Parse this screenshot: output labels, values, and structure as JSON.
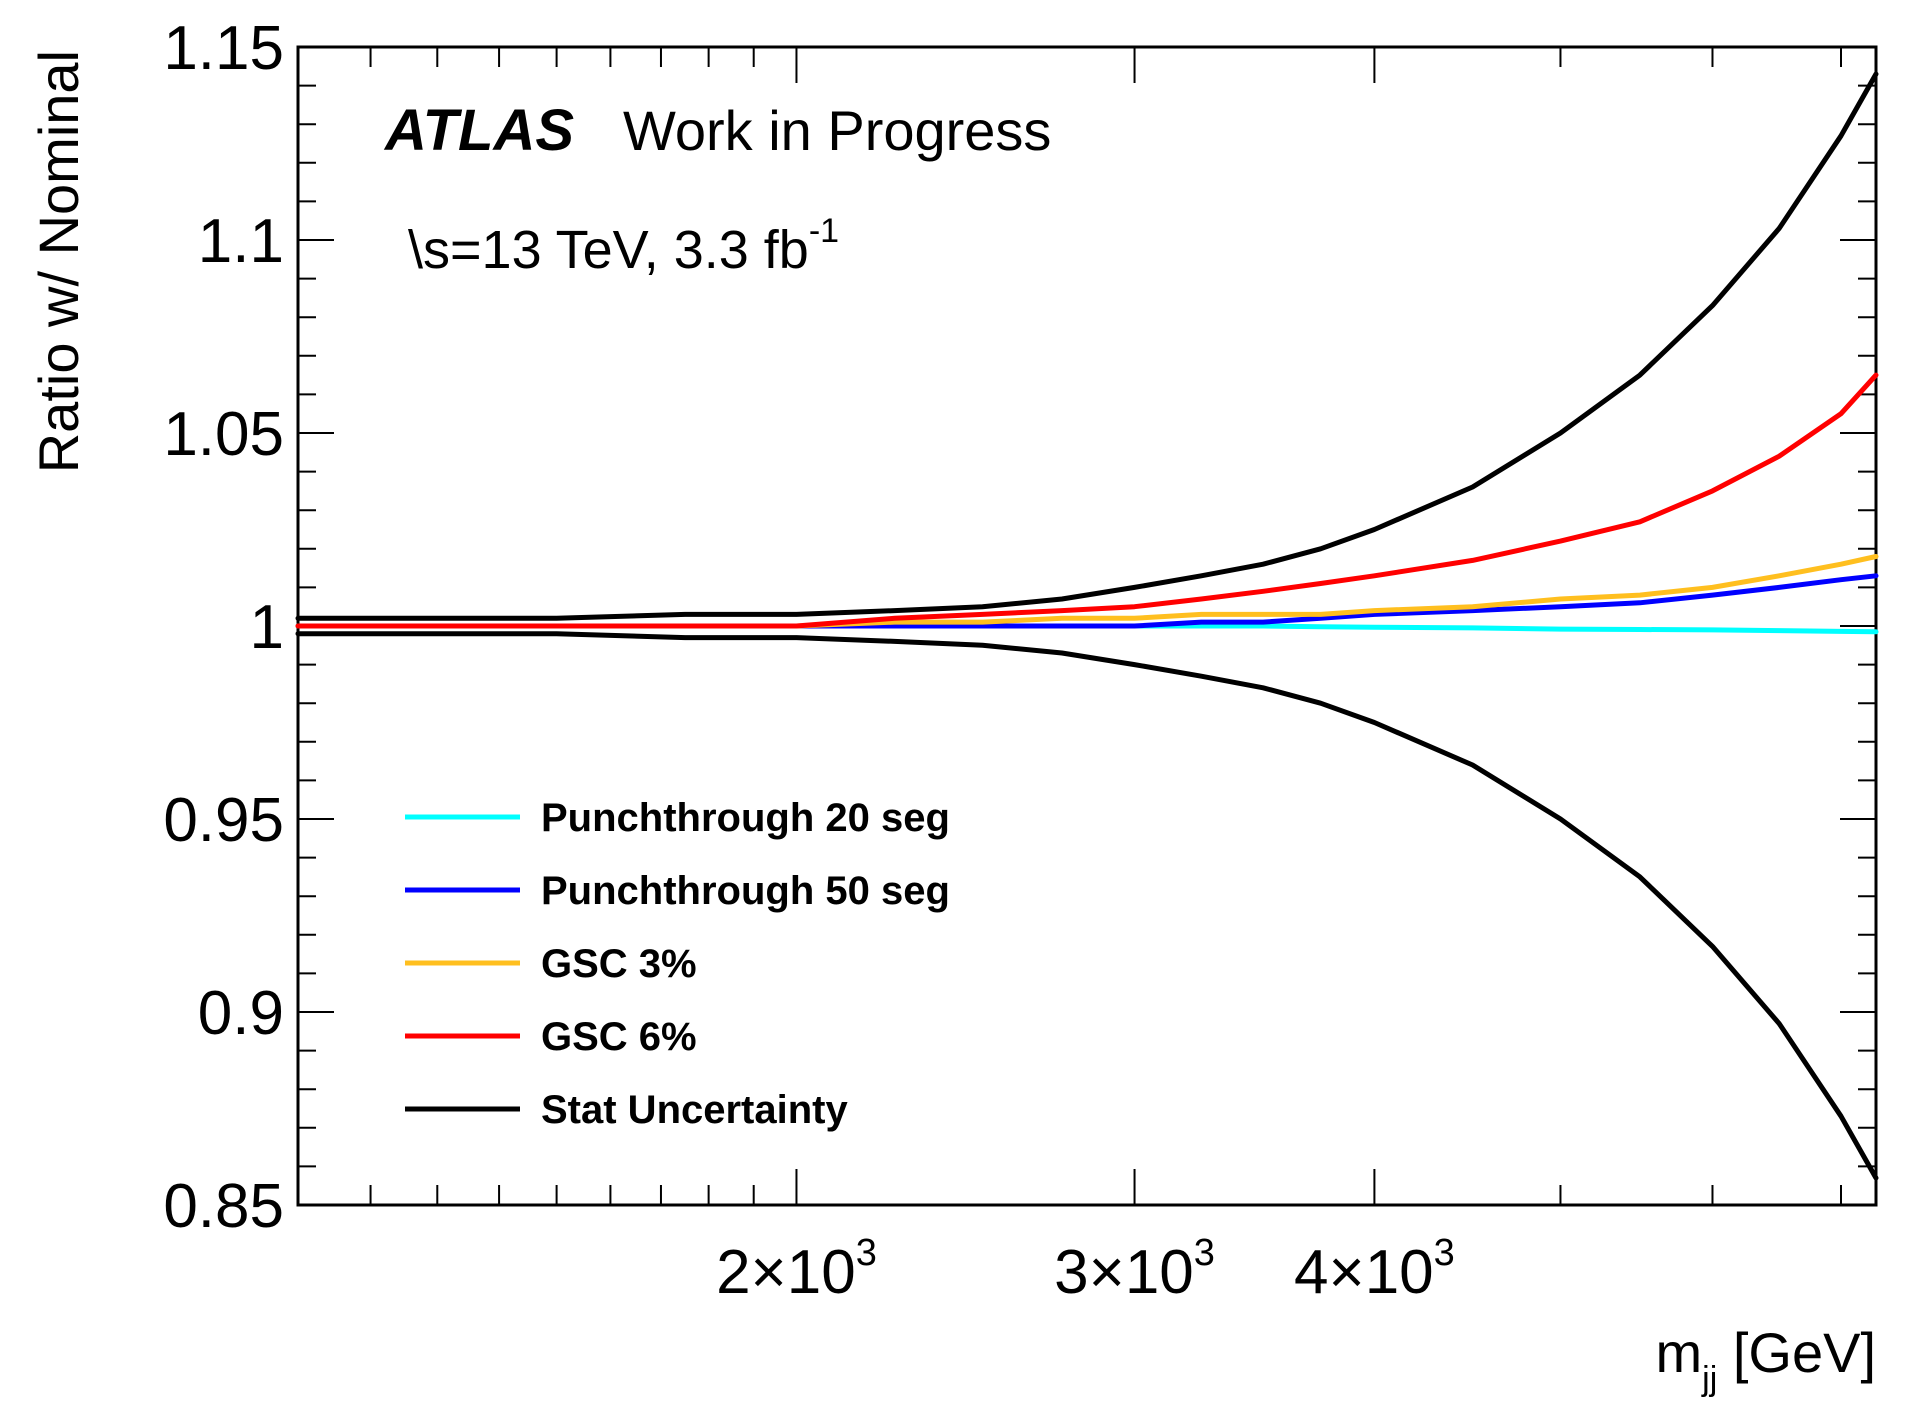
{
  "chart_data": {
    "type": "line",
    "header": {
      "experiment": "ATLAS",
      "status": "Work in Progress",
      "energy_label": "\\s=13 TeV, 3.3 fb",
      "energy_label_exponent": "-1"
    },
    "xlabel": "m",
    "xlabel_subscript": "jj",
    "xlabel_unit": "[GeV]",
    "ylabel": "Ratio w/ Nominal",
    "xscale": "log",
    "xlim": [
      1100,
      7300
    ],
    "ylim": [
      0.85,
      1.15
    ],
    "y_ticks": [
      {
        "value": 0.85,
        "label": "0.85"
      },
      {
        "value": 0.9,
        "label": "0.9"
      },
      {
        "value": 0.95,
        "label": "0.95"
      },
      {
        "value": 1.0,
        "label": "1"
      },
      {
        "value": 1.05,
        "label": "1.05"
      },
      {
        "value": 1.1,
        "label": "1.1"
      },
      {
        "value": 1.15,
        "label": "1.15"
      }
    ],
    "x_ticks": [
      {
        "value": 2000,
        "mantissa": "2",
        "times": "×10",
        "exponent": "3"
      },
      {
        "value": 3000,
        "mantissa": "3",
        "times": "×10",
        "exponent": "3"
      },
      {
        "value": 4000,
        "mantissa": "4",
        "times": "×10",
        "exponent": "3"
      }
    ],
    "x_minor_ticks": [
      1200,
      1300,
      1400,
      1500,
      1600,
      1700,
      1800,
      1900,
      5000,
      6000,
      7000
    ],
    "legend_position": "bottom-left",
    "x": [
      1100,
      1250,
      1500,
      1750,
      2000,
      2250,
      2500,
      2750,
      3000,
      3250,
      3500,
      3750,
      4000,
      4500,
      5000,
      5500,
      6000,
      6500,
      7000,
      7300
    ],
    "series": [
      {
        "name": "Punchthrough 20 seg",
        "color": "#00ffff",
        "values": [
          1.0,
          1.0,
          1.0,
          1.0,
          1.0,
          1.0,
          1.0,
          1.0,
          1.0,
          1.0,
          1.0,
          0.9998,
          0.9997,
          0.9995,
          0.9992,
          0.9991,
          0.999,
          0.9988,
          0.9986,
          0.9985
        ]
      },
      {
        "name": "Punchthrough 50 seg",
        "color": "#0000ff",
        "values": [
          1.0,
          1.0,
          1.0,
          1.0,
          1.0,
          1.0,
          1.0,
          1.0,
          1.0,
          1.001,
          1.001,
          1.002,
          1.003,
          1.004,
          1.005,
          1.006,
          1.008,
          1.01,
          1.012,
          1.013
        ]
      },
      {
        "name": "GSC 3%",
        "color": "#ffbf1f",
        "values": [
          1.0,
          1.0,
          1.0,
          1.0,
          1.0,
          1.001,
          1.001,
          1.002,
          1.002,
          1.003,
          1.003,
          1.003,
          1.004,
          1.005,
          1.007,
          1.008,
          1.01,
          1.013,
          1.016,
          1.018
        ]
      },
      {
        "name": "GSC 6%",
        "color": "#ff0000",
        "values": [
          1.0,
          1.0,
          1.0,
          1.0,
          1.0,
          1.002,
          1.003,
          1.004,
          1.005,
          1.007,
          1.009,
          1.011,
          1.013,
          1.017,
          1.022,
          1.027,
          1.035,
          1.044,
          1.055,
          1.065
        ]
      },
      {
        "name": "Stat Uncertainty",
        "color": "#000000",
        "values": [
          1.002,
          1.002,
          1.002,
          1.003,
          1.003,
          1.004,
          1.005,
          1.007,
          1.01,
          1.013,
          1.016,
          1.02,
          1.025,
          1.036,
          1.05,
          1.065,
          1.083,
          1.103,
          1.127,
          1.143
        ]
      },
      {
        "name": "Stat Uncertainty",
        "color": "#000000",
        "legend": false,
        "values": [
          0.998,
          0.998,
          0.998,
          0.997,
          0.997,
          0.996,
          0.995,
          0.993,
          0.99,
          0.987,
          0.984,
          0.98,
          0.975,
          0.964,
          0.95,
          0.935,
          0.917,
          0.897,
          0.873,
          0.857
        ]
      }
    ]
  }
}
